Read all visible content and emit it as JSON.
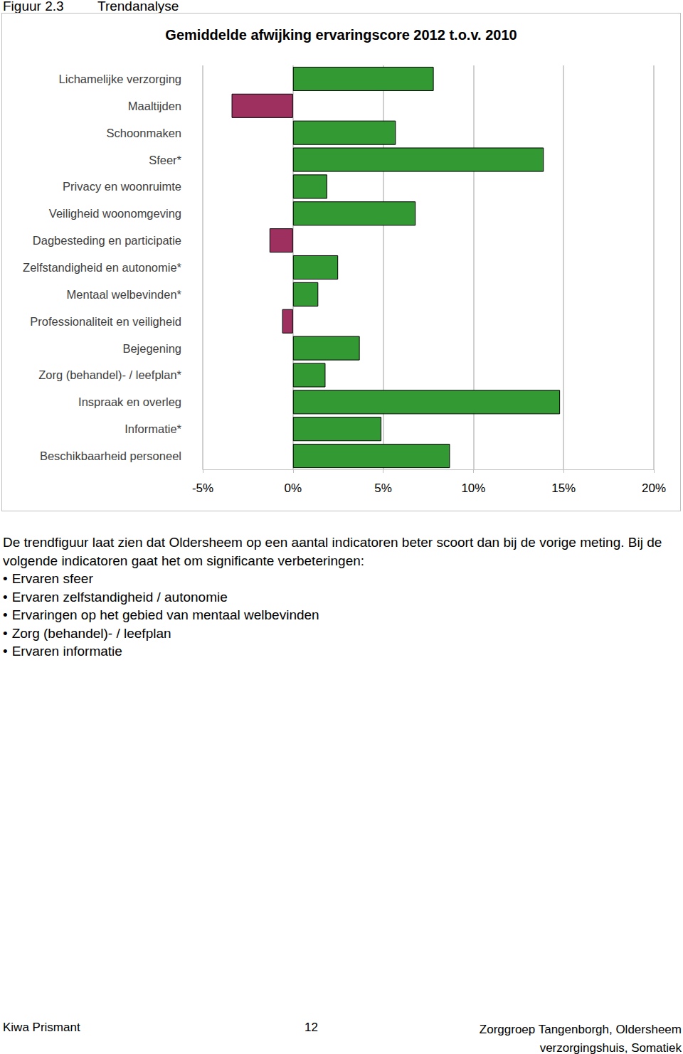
{
  "header": {
    "figure": "Figuur 2.3",
    "title": "Trendanalyse"
  },
  "chart_data": {
    "type": "bar",
    "title": "Gemiddelde afwijking ervaringscore 2012 t.o.v. 2010",
    "orientation": "horizontal",
    "categories": [
      "Lichamelijke verzorging",
      "Maaltijden",
      "Schoonmaken",
      "Sfeer*",
      "Privacy en woonruimte",
      "Veiligheid woonomgeving",
      "Dagbesteding en participatie",
      "Zelfstandigheid en autonomie*",
      "Mentaal welbevinden*",
      "Professionaliteit en veiligheid",
      "Bejegening",
      "Zorg (behandel)- / leefplan*",
      "Inspraak en overleg",
      "Informatie*",
      "Beschikbaarheid personeel"
    ],
    "values": [
      7.8,
      -3.4,
      5.7,
      13.9,
      1.9,
      6.8,
      -1.3,
      2.5,
      1.4,
      -0.6,
      3.7,
      1.8,
      14.8,
      4.9,
      8.7
    ],
    "colors": [
      "#339933",
      "#9e3060",
      "#339933",
      "#339933",
      "#339933",
      "#339933",
      "#9e3060",
      "#339933",
      "#339933",
      "#9e3060",
      "#339933",
      "#339933",
      "#339933",
      "#339933",
      "#339933"
    ],
    "xlim": [
      -5,
      20
    ],
    "xticks": [
      {
        "value": -5,
        "label": "-5%"
      },
      {
        "value": 0,
        "label": "0%"
      },
      {
        "value": 5,
        "label": "5%"
      },
      {
        "value": 10,
        "label": "10%"
      },
      {
        "value": 15,
        "label": "15%"
      },
      {
        "value": 20,
        "label": "20%"
      }
    ],
    "grid": true
  },
  "text": {
    "intro": "De trendfiguur laat zien dat Oldersheem op een aantal indicatoren beter scoort dan bij de vorige meting. Bij de volgende indicatoren gaat het om significante verbeteringen:",
    "bullets": [
      "Ervaren sfeer",
      "Ervaren zelfstandigheid / autonomie",
      "Ervaringen op het gebied van mentaal welbevinden",
      "Zorg (behandel)- / leefplan",
      "Ervaren informatie"
    ]
  },
  "footer": {
    "left": "Kiwa Prismant",
    "page": "12",
    "right": [
      "Zorggroep Tangenborgh, Oldersheem",
      "verzorgingshuis, Somatiek"
    ]
  }
}
